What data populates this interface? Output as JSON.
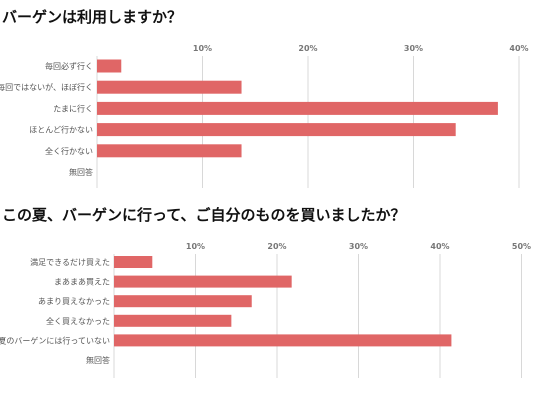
{
  "chart_data": [
    {
      "type": "bar",
      "orientation": "horizontal",
      "title": "バーゲンは利用しますか？",
      "categories": [
        "毎回必ず行く",
        "毎回ではないが、ほぼ行く",
        "たまに行く",
        "ほとんど行かない",
        "全く行かない",
        "無回答"
      ],
      "values": [
        2.3,
        13.7,
        38.0,
        34.0,
        13.7,
        0
      ],
      "xlim": [
        0,
        40
      ],
      "ticks": [
        10,
        20,
        30,
        40
      ],
      "tick_labels": [
        "10%",
        "20%",
        "30%",
        "40%"
      ],
      "bar_color": "#e06666",
      "grid": true
    },
    {
      "type": "bar",
      "orientation": "horizontal",
      "title": "この夏、バーゲンに行って、ご自分のものを買いましたか？",
      "categories": [
        "満足できるだけ買えた",
        "まあまあ買えた",
        "あまり買えなかった",
        "全く買えなかった",
        "今夏のバーゲンには行っていない",
        "無回答"
      ],
      "values": [
        4.7,
        21.8,
        16.9,
        14.4,
        41.4,
        0
      ],
      "xlim": [
        0,
        50
      ],
      "ticks": [
        10,
        20,
        30,
        40,
        50
      ],
      "tick_labels": [
        "10%",
        "20%",
        "30%",
        "40%",
        "50%"
      ],
      "bar_color": "#e06666",
      "grid": true
    }
  ]
}
